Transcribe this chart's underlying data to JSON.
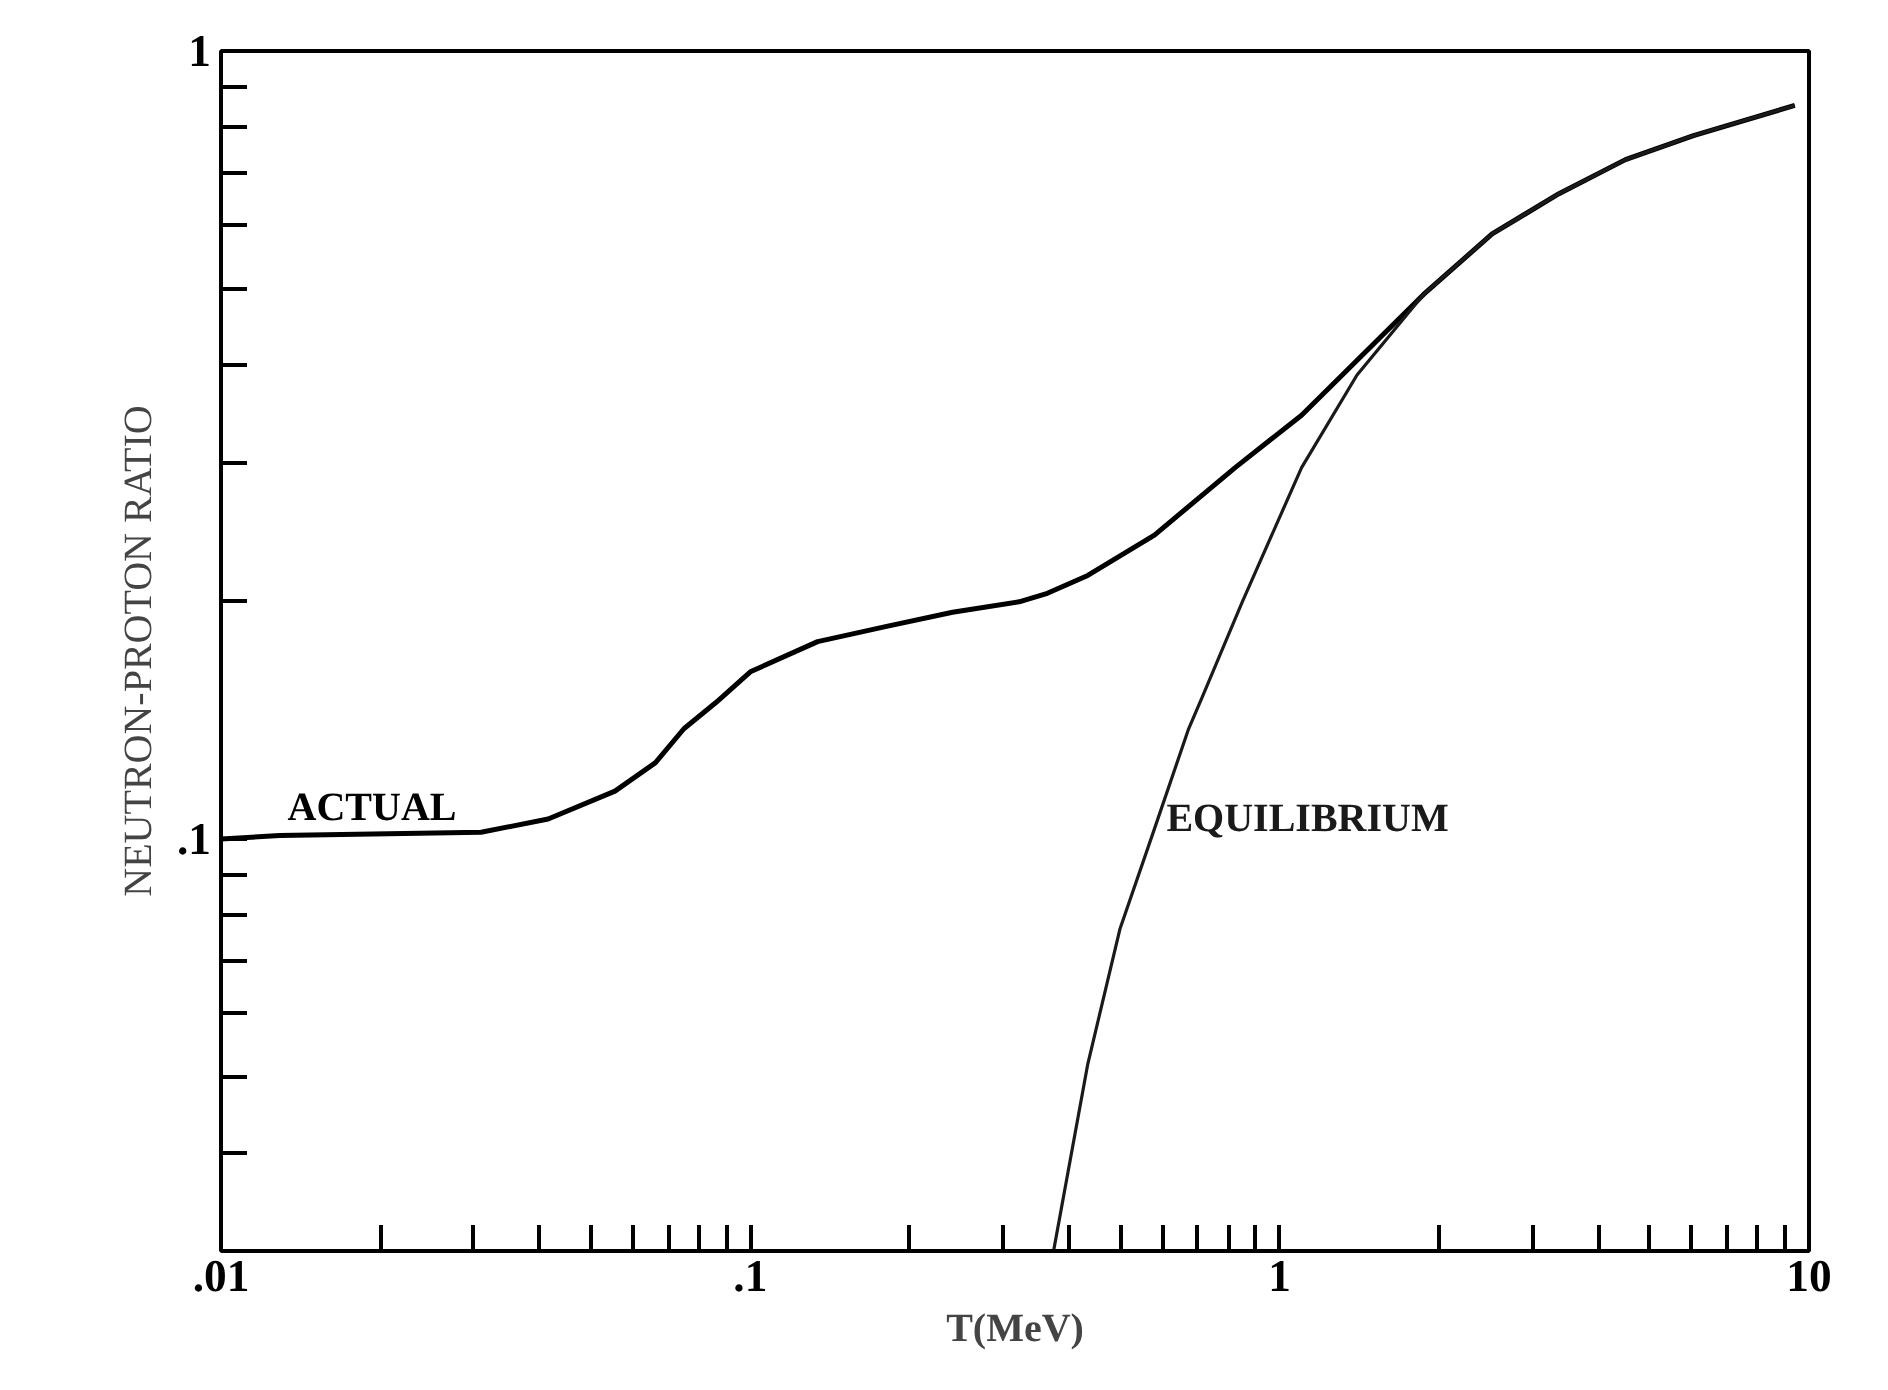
{
  "chart_data": {
    "type": "line",
    "xlabel": "T(MeV)",
    "ylabel": "NEUTRON-PROTON RATIO",
    "log": "xy",
    "xlim": [
      0.01,
      10
    ],
    "ylim": [
      0.03,
      1
    ],
    "xticks": [
      {
        "value": 0.01,
        "label": ".01"
      },
      {
        "value": 0.02,
        "label": null
      },
      {
        "value": 0.03,
        "label": null
      },
      {
        "value": 0.04,
        "label": null
      },
      {
        "value": 0.05,
        "label": null
      },
      {
        "value": 0.06,
        "label": null
      },
      {
        "value": 0.07,
        "label": null
      },
      {
        "value": 0.08,
        "label": null
      },
      {
        "value": 0.09,
        "label": null
      },
      {
        "value": 0.1,
        "label": ".1"
      },
      {
        "value": 0.2,
        "label": null
      },
      {
        "value": 0.3,
        "label": null
      },
      {
        "value": 0.4,
        "label": null
      },
      {
        "value": 0.5,
        "label": null
      },
      {
        "value": 0.6,
        "label": null
      },
      {
        "value": 0.7,
        "label": null
      },
      {
        "value": 0.8,
        "label": null
      },
      {
        "value": 0.9,
        "label": null
      },
      1,
      {
        "value": 2,
        "label": null
      },
      {
        "value": 3,
        "label": null
      },
      {
        "value": 4,
        "label": null
      },
      {
        "value": 5,
        "label": null
      },
      {
        "value": 6,
        "label": null
      },
      {
        "value": 7,
        "label": null
      },
      {
        "value": 8,
        "label": null
      },
      {
        "value": 9,
        "label": null
      },
      10
    ],
    "yticks": [
      {
        "value": 0.04,
        "label": null
      },
      {
        "value": 0.05,
        "label": null
      },
      {
        "value": 0.06,
        "label": null
      },
      {
        "value": 0.07,
        "label": null
      },
      {
        "value": 0.08,
        "label": null
      },
      {
        "value": 0.09,
        "label": null
      },
      {
        "value": 0.1,
        "label": ".1"
      },
      {
        "value": 0.2,
        "label": null
      },
      {
        "value": 0.3,
        "label": null
      },
      {
        "value": 0.4,
        "label": null
      },
      {
        "value": 0.5,
        "label": null
      },
      {
        "value": 0.6,
        "label": null
      },
      {
        "value": 0.7,
        "label": null
      },
      {
        "value": 0.8,
        "label": null
      },
      {
        "value": 0.9,
        "label": null
      },
      1
    ],
    "grid": false,
    "legend": false,
    "marker": "none",
    "line_style": "solid",
    "series": [
      {
        "name": "ACTUAL",
        "color": "#000000",
        "x": [
          0.01,
          0.0129,
          0.031,
          0.0415,
          0.0555,
          0.0662,
          0.0749,
          0.0861,
          0.1,
          0.134,
          0.18,
          0.241,
          0.322,
          0.364,
          0.434,
          0.58,
          0.824,
          1.1,
          1.87,
          2.52,
          3.37,
          4.5,
          6.05,
          9.4
        ],
        "values": [
          0.1,
          0.101,
          0.102,
          0.106,
          0.115,
          0.125,
          0.138,
          0.149,
          0.163,
          0.178,
          0.186,
          0.194,
          0.2,
          0.205,
          0.216,
          0.243,
          0.296,
          0.345,
          0.491,
          0.586,
          0.659,
          0.728,
          0.781,
          0.853
        ]
      },
      {
        "name": "EQUILIBRIUM",
        "color": "#1a1a1a",
        "x": [
          0.374,
          0.434,
          0.499,
          0.58,
          0.673,
          0.713,
          0.85,
          1.1,
          1.4,
          1.87,
          2.52,
          3.37,
          4.5,
          6.05,
          9.4
        ],
        "values": [
          0.03,
          0.0518,
          0.0768,
          0.103,
          0.138,
          0.151,
          0.2,
          0.296,
          0.388,
          0.491,
          0.586,
          0.659,
          0.728,
          0.781,
          0.853
        ]
      }
    ]
  }
}
